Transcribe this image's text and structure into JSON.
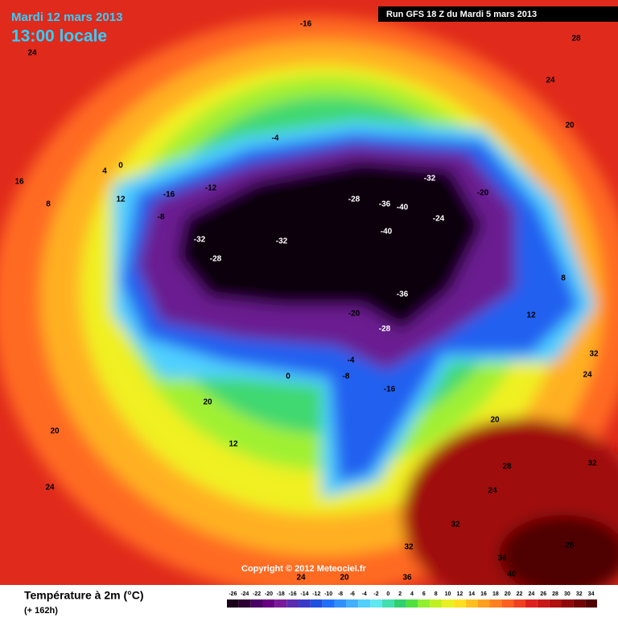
{
  "header": {
    "date": "Mardi 12 mars 2013",
    "time": "13:00 locale",
    "run": "Run GFS 18 Z du Mardi 5 mars 2013"
  },
  "copyright": "Copyright © 2012 Meteociel.fr",
  "legend": {
    "title": "Température à 2m (°C)",
    "subtitle": "(+ 162h)",
    "ticks": [
      -26,
      -24,
      -22,
      -20,
      -18,
      -16,
      -14,
      -12,
      -10,
      -8,
      -6,
      -4,
      -2,
      0,
      2,
      4,
      6,
      8,
      10,
      12,
      14,
      16,
      18,
      20,
      22,
      24,
      26,
      28,
      30,
      32,
      34
    ],
    "colors": [
      "#1a001a",
      "#2d0033",
      "#4b0066",
      "#660080",
      "#7a1a9a",
      "#5a2db0",
      "#3a3ac8",
      "#2050e0",
      "#2070ff",
      "#3090ff",
      "#40b0ff",
      "#50d0ff",
      "#60e8f0",
      "#40e0b0",
      "#30d070",
      "#50e040",
      "#90f030",
      "#c0f020",
      "#e8f020",
      "#ffe020",
      "#ffc020",
      "#ffa020",
      "#ff8020",
      "#ff6020",
      "#f04020",
      "#e02020",
      "#c81818",
      "#b01010",
      "#900808",
      "#700404",
      "#500000"
    ]
  },
  "map_labels": [
    -16,
    24,
    28,
    24,
    20,
    -32,
    -32,
    -28,
    -40,
    -36,
    -32,
    -40,
    -28,
    -24,
    -20,
    -16,
    -12,
    -8,
    -4,
    0,
    4,
    8,
    12,
    16,
    20,
    24,
    20,
    12,
    -8,
    -16,
    0,
    -4,
    -20,
    -28,
    -36,
    8,
    12,
    20,
    24,
    28,
    32,
    36,
    40,
    32,
    28,
    24,
    32,
    24,
    20,
    36,
    32
  ]
}
